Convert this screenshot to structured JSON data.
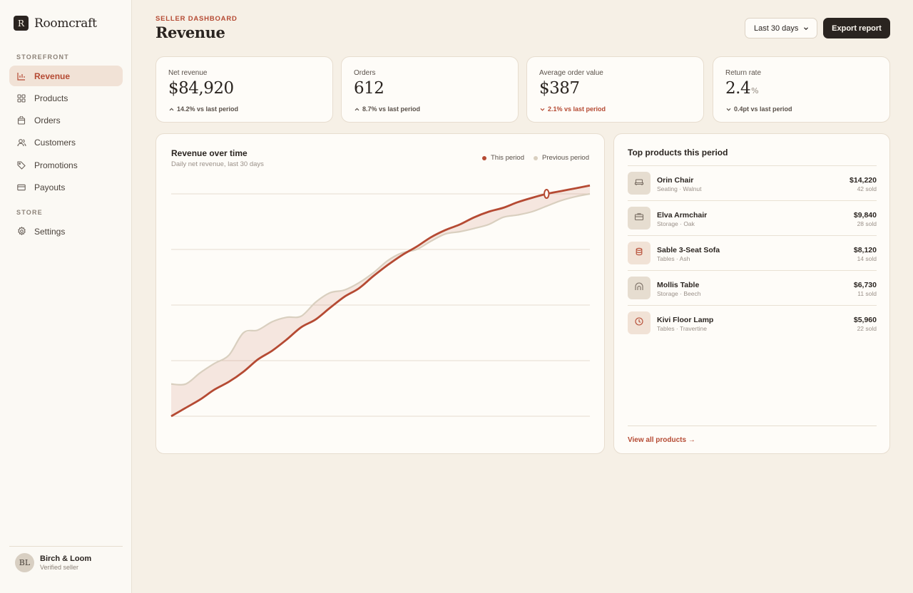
{
  "brand": {
    "mark": "R",
    "name": "Roomcraft"
  },
  "sidebar": {
    "section_storefront": "STOREFRONT",
    "section_store": "STORE",
    "items": [
      {
        "label": "Revenue",
        "icon": "bar-chart-icon",
        "active": true
      },
      {
        "label": "Products",
        "icon": "grid-icon"
      },
      {
        "label": "Orders",
        "icon": "bag-icon"
      },
      {
        "label": "Customers",
        "icon": "users-icon"
      },
      {
        "label": "Promotions",
        "icon": "tag-icon"
      },
      {
        "label": "Payouts",
        "icon": "card-icon"
      },
      {
        "label": "Settings",
        "icon": "gear-icon"
      }
    ],
    "user": {
      "initials": "BL",
      "name": "Birch & Loom",
      "role": "Verified seller"
    }
  },
  "header": {
    "eyebrow": "SELLER DASHBOARD",
    "title": "Revenue",
    "range": "Last 30 days",
    "export": "Export report"
  },
  "kpis": [
    {
      "label": "Net revenue",
      "value": "$84,920",
      "unit": "",
      "delta": "14.2% vs last period",
      "direction": "up"
    },
    {
      "label": "Orders",
      "value": "612",
      "unit": "",
      "delta": "8.7% vs last period",
      "direction": "up"
    },
    {
      "label": "Average order value",
      "value": "$387",
      "unit": "",
      "delta": "2.1% vs last period",
      "direction": "down"
    },
    {
      "label": "Return rate",
      "value": "2.4",
      "unit": "%",
      "delta": "0.4pt vs last period",
      "direction": "down"
    }
  ],
  "chart": {
    "title": "Revenue over time",
    "subtitle": "Daily net revenue, last 30 days",
    "legend_this": "This period",
    "legend_prev": "Previous period"
  },
  "chart_data": {
    "type": "line",
    "x": [
      1,
      2,
      3,
      4,
      5,
      6,
      7,
      8,
      9,
      10,
      11,
      12,
      13,
      14,
      15,
      16,
      17,
      18,
      19,
      20,
      21,
      22,
      23,
      24,
      25,
      26,
      27,
      28,
      29,
      30
    ],
    "ylim": [
      0,
      4
    ],
    "grid": true,
    "legend": "top-right",
    "series": [
      {
        "name": "This period",
        "color": "#b54a33",
        "values": [
          0,
          0.15,
          0.3,
          0.48,
          0.62,
          0.8,
          1.02,
          1.18,
          1.38,
          1.6,
          1.74,
          1.95,
          2.15,
          2.3,
          2.52,
          2.72,
          2.9,
          3.05,
          3.22,
          3.35,
          3.45,
          3.58,
          3.68,
          3.75,
          3.85,
          3.93,
          4.0,
          4.05,
          4.1,
          4.15
        ]
      },
      {
        "name": "Previous period",
        "color": "#d9cfbf",
        "values": [
          0.58,
          0.58,
          0.78,
          0.95,
          1.1,
          1.5,
          1.55,
          1.7,
          1.78,
          1.8,
          2.05,
          2.22,
          2.27,
          2.4,
          2.58,
          2.8,
          2.94,
          3.0,
          3.15,
          3.28,
          3.32,
          3.38,
          3.45,
          3.58,
          3.62,
          3.68,
          3.78,
          3.88,
          3.95,
          4.0
        ]
      }
    ]
  },
  "products": {
    "title": "Top products this period",
    "items": [
      {
        "name": "Orin Chair",
        "meta": "Seating · Walnut",
        "revenue": "$14,220",
        "sold": "42 sold",
        "icon": "sofa-icon",
        "tint": "#e6ddd0"
      },
      {
        "name": "Elva Armchair",
        "meta": "Storage · Oak",
        "revenue": "$9,840",
        "sold": "28 sold",
        "icon": "briefcase-icon",
        "tint": "#e6ddd0"
      },
      {
        "name": "Sable 3-Seat Sofa",
        "meta": "Tables · Ash",
        "revenue": "$8,120",
        "sold": "14 sold",
        "icon": "cylinder-icon",
        "tint": "#f1e2d6"
      },
      {
        "name": "Mollis Table",
        "meta": "Storage · Beech",
        "revenue": "$6,730",
        "sold": "11 sold",
        "icon": "arch-icon",
        "tint": "#e6ddd0"
      },
      {
        "name": "Kivi Floor Lamp",
        "meta": "Tables · Travertine",
        "revenue": "$5,960",
        "sold": "22 sold",
        "icon": "clock-icon",
        "tint": "#f1e2d6"
      }
    ],
    "view_all": "View all products →"
  }
}
